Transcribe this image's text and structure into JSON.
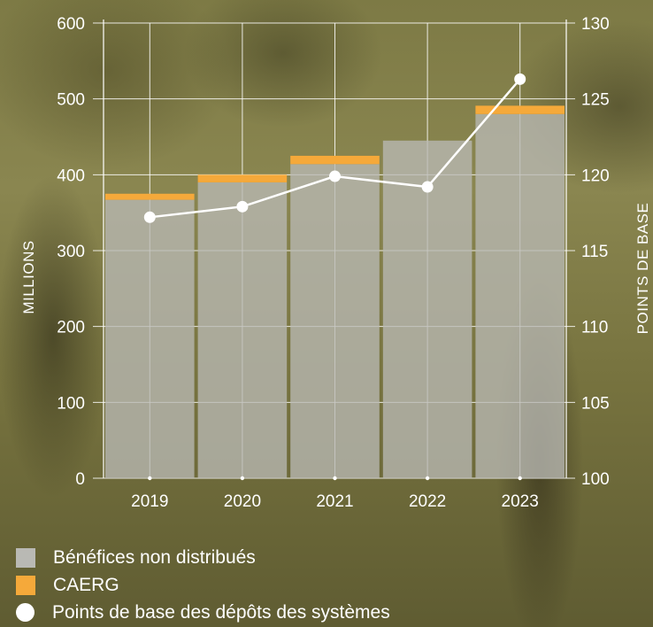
{
  "chart_data": {
    "type": "bar",
    "categories": [
      "2019",
      "2020",
      "2021",
      "2022",
      "2023"
    ],
    "series": [
      {
        "name": "Bénéfices non distribués",
        "type": "stacked-bar",
        "axis": "left",
        "color": "#b9b9b4",
        "values": [
          367,
          390,
          414,
          445,
          480
        ]
      },
      {
        "name": "CAERG",
        "type": "stacked-bar",
        "axis": "left",
        "color": "#f5a93a",
        "values": [
          8,
          10,
          11,
          0,
          11
        ]
      },
      {
        "name": "Points de base des dépôts des systèmes",
        "type": "line",
        "axis": "right",
        "color": "#ffffff",
        "values": [
          117.2,
          117.9,
          119.9,
          119.2,
          126.3
        ]
      }
    ],
    "ylabel_left": "MILLIONS",
    "ylabel_right": "POINTS DE BASE",
    "ylim_left": [
      0,
      600
    ],
    "ylim_right": [
      100,
      130
    ],
    "yticks_left": [
      "0",
      "100",
      "200",
      "300",
      "400",
      "500",
      "600"
    ],
    "yticks_right": [
      "100",
      "105",
      "110",
      "115",
      "120",
      "125",
      "130"
    ],
    "grid": true,
    "legend_position": "bottom-left"
  }
}
